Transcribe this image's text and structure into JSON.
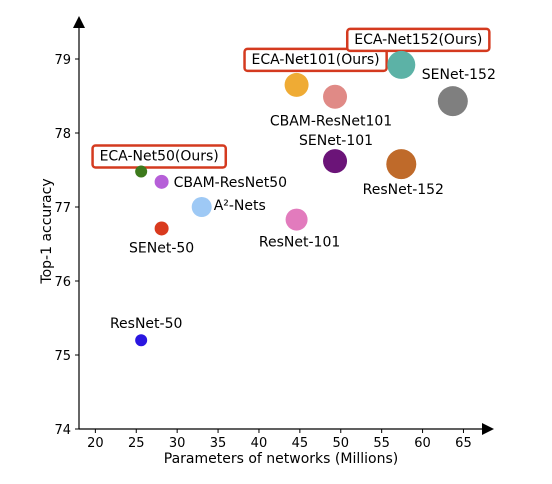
{
  "chart_data": {
    "type": "scatter",
    "title": "",
    "xlabel": "Parameters of networks (Millions)",
    "ylabel": "Top-1 accuracy",
    "xlim": [
      18,
      68
    ],
    "ylim": [
      74,
      79.5
    ],
    "xticks": [
      20,
      25,
      30,
      35,
      40,
      45,
      50,
      55,
      60,
      65
    ],
    "yticks": [
      74,
      75,
      76,
      77,
      78,
      79
    ],
    "grid": false,
    "points": [
      {
        "label": "ResNet-50",
        "x": 25.6,
        "y": 75.2,
        "color": "#2a16e0",
        "size": 6,
        "highlight": false
      },
      {
        "label": "SENet-50",
        "x": 28.1,
        "y": 76.71,
        "color": "#d93a1e",
        "size": 7,
        "highlight": false
      },
      {
        "label": "CBAM-ResNet50",
        "x": 28.1,
        "y": 77.34,
        "color": "#b65fd8",
        "size": 7,
        "highlight": false
      },
      {
        "label": "ECA-Net50(Ours)",
        "x": 25.6,
        "y": 77.48,
        "color": "#3d7a1c",
        "size": 6,
        "highlight": true
      },
      {
        "label": "A²-Nets",
        "x": 33.0,
        "y": 77.0,
        "color": "#9ec9f5",
        "size": 10,
        "highlight": false
      },
      {
        "label": "ResNet-101",
        "x": 44.6,
        "y": 76.83,
        "color": "#e27bbd",
        "size": 11,
        "highlight": false
      },
      {
        "label": "SENet-101",
        "x": 49.3,
        "y": 77.62,
        "color": "#6b1478",
        "size": 12,
        "highlight": false
      },
      {
        "label": "CBAM-ResNet101",
        "x": 49.3,
        "y": 78.49,
        "color": "#e08a86",
        "size": 12,
        "highlight": false
      },
      {
        "label": "ECA-Net101(Ours)",
        "x": 44.6,
        "y": 78.65,
        "color": "#efab34",
        "size": 12,
        "highlight": true
      },
      {
        "label": "ResNet-152",
        "x": 57.4,
        "y": 77.58,
        "color": "#bf6a2a",
        "size": 15,
        "highlight": false
      },
      {
        "label": "ECA-Net152(Ours)",
        "x": 57.4,
        "y": 78.92,
        "color": "#5cb2a6",
        "size": 14,
        "highlight": true
      },
      {
        "label": "SENet-152",
        "x": 63.7,
        "y": 78.43,
        "color": "#7f7f7f",
        "size": 15,
        "highlight": false
      }
    ],
    "highlight_box_color": "#d43a1f"
  }
}
